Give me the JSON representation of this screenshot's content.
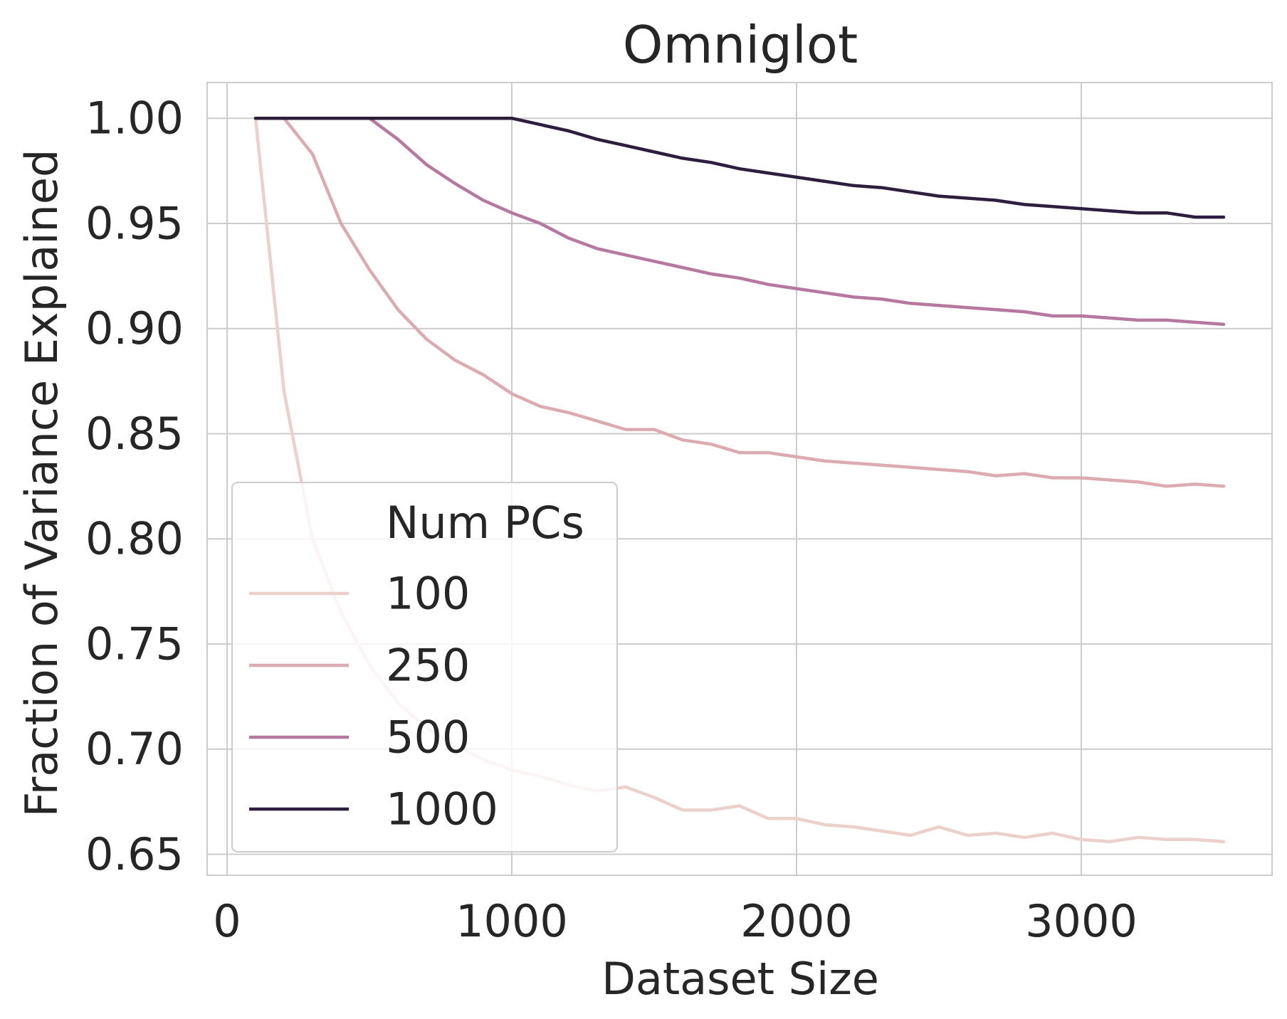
{
  "chart_data": {
    "type": "line",
    "title": "Omniglot",
    "xlabel": "Dataset Size",
    "ylabel": "Fraction of Variance Explained",
    "xlim": [
      -70,
      3670
    ],
    "ylim": [
      0.64,
      1.017
    ],
    "xticks": [
      0,
      1000,
      2000,
      3000
    ],
    "xtick_labels": [
      "0",
      "1000",
      "2000",
      "3000"
    ],
    "yticks": [
      0.65,
      0.7,
      0.75,
      0.8,
      0.85,
      0.9,
      0.95,
      1.0
    ],
    "ytick_labels": [
      "0.65",
      "0.70",
      "0.75",
      "0.80",
      "0.85",
      "0.90",
      "0.95",
      "1.00"
    ],
    "grid": true,
    "legend": {
      "title": "Num PCs",
      "position": "lower-left"
    },
    "x": [
      100,
      200,
      300,
      400,
      500,
      600,
      700,
      800,
      900,
      1000,
      1100,
      1200,
      1300,
      1400,
      1500,
      1600,
      1700,
      1800,
      1900,
      2000,
      2100,
      2200,
      2300,
      2400,
      2500,
      2600,
      2700,
      2800,
      2900,
      3000,
      3100,
      3200,
      3300,
      3400,
      3500
    ],
    "series": [
      {
        "name": "100",
        "color": "#ebd0cb",
        "values": [
          1.0,
          0.87,
          0.8,
          0.765,
          0.74,
          0.722,
          0.71,
          0.702,
          0.695,
          0.69,
          0.687,
          0.683,
          0.68,
          0.682,
          0.677,
          0.671,
          0.671,
          0.673,
          0.667,
          0.667,
          0.664,
          0.663,
          0.661,
          0.659,
          0.663,
          0.659,
          0.66,
          0.658,
          0.66,
          0.657,
          0.656,
          0.658,
          0.657,
          0.657,
          0.656
        ]
      },
      {
        "name": "250",
        "color": "#dcabb2",
        "values": [
          1.0,
          1.0,
          0.983,
          0.95,
          0.928,
          0.909,
          0.895,
          0.885,
          0.878,
          0.869,
          0.863,
          0.86,
          0.856,
          0.852,
          0.852,
          0.847,
          0.845,
          0.841,
          0.841,
          0.839,
          0.837,
          0.836,
          0.835,
          0.834,
          0.833,
          0.832,
          0.83,
          0.831,
          0.829,
          0.829,
          0.828,
          0.827,
          0.825,
          0.826,
          0.825
        ]
      },
      {
        "name": "500",
        "color": "#b5789e",
        "values": [
          1.0,
          1.0,
          1.0,
          1.0,
          1.0,
          0.99,
          0.978,
          0.969,
          0.961,
          0.955,
          0.95,
          0.943,
          0.938,
          0.935,
          0.932,
          0.929,
          0.926,
          0.924,
          0.921,
          0.919,
          0.917,
          0.915,
          0.914,
          0.912,
          0.911,
          0.91,
          0.909,
          0.908,
          0.906,
          0.906,
          0.905,
          0.904,
          0.904,
          0.903,
          0.902
        ]
      },
      {
        "name": "1000",
        "color": "#2d1e3e",
        "values": [
          1.0,
          1.0,
          1.0,
          1.0,
          1.0,
          1.0,
          1.0,
          1.0,
          1.0,
          1.0,
          0.997,
          0.994,
          0.99,
          0.987,
          0.984,
          0.981,
          0.979,
          0.976,
          0.974,
          0.972,
          0.97,
          0.968,
          0.967,
          0.965,
          0.963,
          0.962,
          0.961,
          0.959,
          0.958,
          0.957,
          0.956,
          0.955,
          0.955,
          0.953,
          0.953
        ]
      }
    ]
  }
}
